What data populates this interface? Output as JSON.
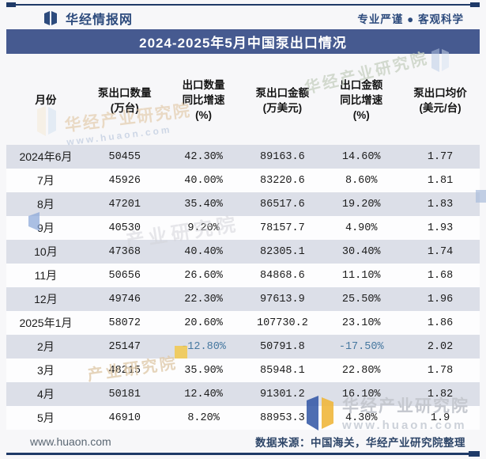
{
  "brand": {
    "name": "华经情报网",
    "tagline": "专业严谨 ● 客观科学"
  },
  "title": "2024-2025年5月中国泵出口情况",
  "table": {
    "columns": [
      {
        "lines": [
          "月份"
        ]
      },
      {
        "lines": [
          "泵出口数量",
          "(万台)"
        ]
      },
      {
        "lines": [
          "出口数量",
          "同比增速",
          "(%)"
        ]
      },
      {
        "lines": [
          "泵出口金额",
          "(万美元)"
        ]
      },
      {
        "lines": [
          "出口金额",
          "同比增速",
          "(%)"
        ]
      },
      {
        "lines": [
          "泵出口均价",
          "(美元/台)"
        ]
      }
    ],
    "rows": [
      [
        "2024年6月",
        "50455",
        "42.30%",
        "89163.6",
        "14.60%",
        "1.77"
      ],
      [
        "7月",
        "45926",
        "40.00%",
        "83220.6",
        "8.60%",
        "1.81"
      ],
      [
        "8月",
        "47201",
        "35.40%",
        "86517.6",
        "19.20%",
        "1.83"
      ],
      [
        "9月",
        "40530",
        "9.20%",
        "78157.7",
        "4.90%",
        "1.93"
      ],
      [
        "10月",
        "47368",
        "40.40%",
        "82305.1",
        "30.40%",
        "1.74"
      ],
      [
        "11月",
        "50656",
        "26.60%",
        "84868.6",
        "11.10%",
        "1.68"
      ],
      [
        "12月",
        "49746",
        "22.30%",
        "97613.9",
        "25.50%",
        "1.96"
      ],
      [
        "2025年1月",
        "58072",
        "20.60%",
        "107730.2",
        "23.10%",
        "1.86"
      ],
      [
        "2月",
        "25147",
        "-12.80%",
        "50791.8",
        "-17.50%",
        "2.02"
      ],
      [
        "3月",
        "48215",
        "35.90%",
        "85948.1",
        "22.80%",
        "1.78"
      ],
      [
        "4月",
        "50181",
        "12.40%",
        "91301.2",
        "16.10%",
        "1.82"
      ],
      [
        "5月",
        "46910",
        "8.20%",
        "88953.3",
        "4.30%",
        "1.9"
      ]
    ]
  },
  "footer": {
    "site": "www.huaon.com",
    "source": "数据来源：中国海关，华经产业研究院整理"
  },
  "watermarks": {
    "institute": "华经产业研究院",
    "institute_short": "产业研究院",
    "site": "www.huaon.com"
  },
  "colors": {
    "accent_navy": "#1f3a68",
    "brand_blue": "#2d4b7d",
    "title_bar": "#465a90",
    "row_shade": "#dcdfe8",
    "negative_value": "#4678a0",
    "watermark_yellow": "#f2c94c"
  },
  "chart_data": {
    "type": "table",
    "title": "2024-2025年5月中国泵出口情况",
    "columns": [
      "月份",
      "泵出口数量(万台)",
      "出口数量同比增速(%)",
      "泵出口金额(万美元)",
      "出口金额同比增速(%)",
      "泵出口均价(美元/台)"
    ],
    "rows": [
      [
        "2024年6月",
        50455,
        42.3,
        89163.6,
        14.6,
        1.77
      ],
      [
        "7月",
        45926,
        40.0,
        83220.6,
        8.6,
        1.81
      ],
      [
        "8月",
        47201,
        35.4,
        86517.6,
        19.2,
        1.83
      ],
      [
        "9月",
        40530,
        9.2,
        78157.7,
        4.9,
        1.93
      ],
      [
        "10月",
        47368,
        40.4,
        82305.1,
        30.4,
        1.74
      ],
      [
        "11月",
        50656,
        26.6,
        84868.6,
        11.1,
        1.68
      ],
      [
        "12月",
        49746,
        22.3,
        97613.9,
        25.5,
        1.96
      ],
      [
        "2025年1月",
        58072,
        20.6,
        107730.2,
        23.1,
        1.86
      ],
      [
        "2月",
        25147,
        -12.8,
        50791.8,
        -17.5,
        2.02
      ],
      [
        "3月",
        48215,
        35.9,
        85948.1,
        22.8,
        1.78
      ],
      [
        "4月",
        50181,
        12.4,
        91301.2,
        16.1,
        1.82
      ],
      [
        "5月",
        46910,
        8.2,
        88953.3,
        4.3,
        1.9
      ]
    ],
    "source_note": "数据来源：中国海关，华经产业研究院整理"
  }
}
